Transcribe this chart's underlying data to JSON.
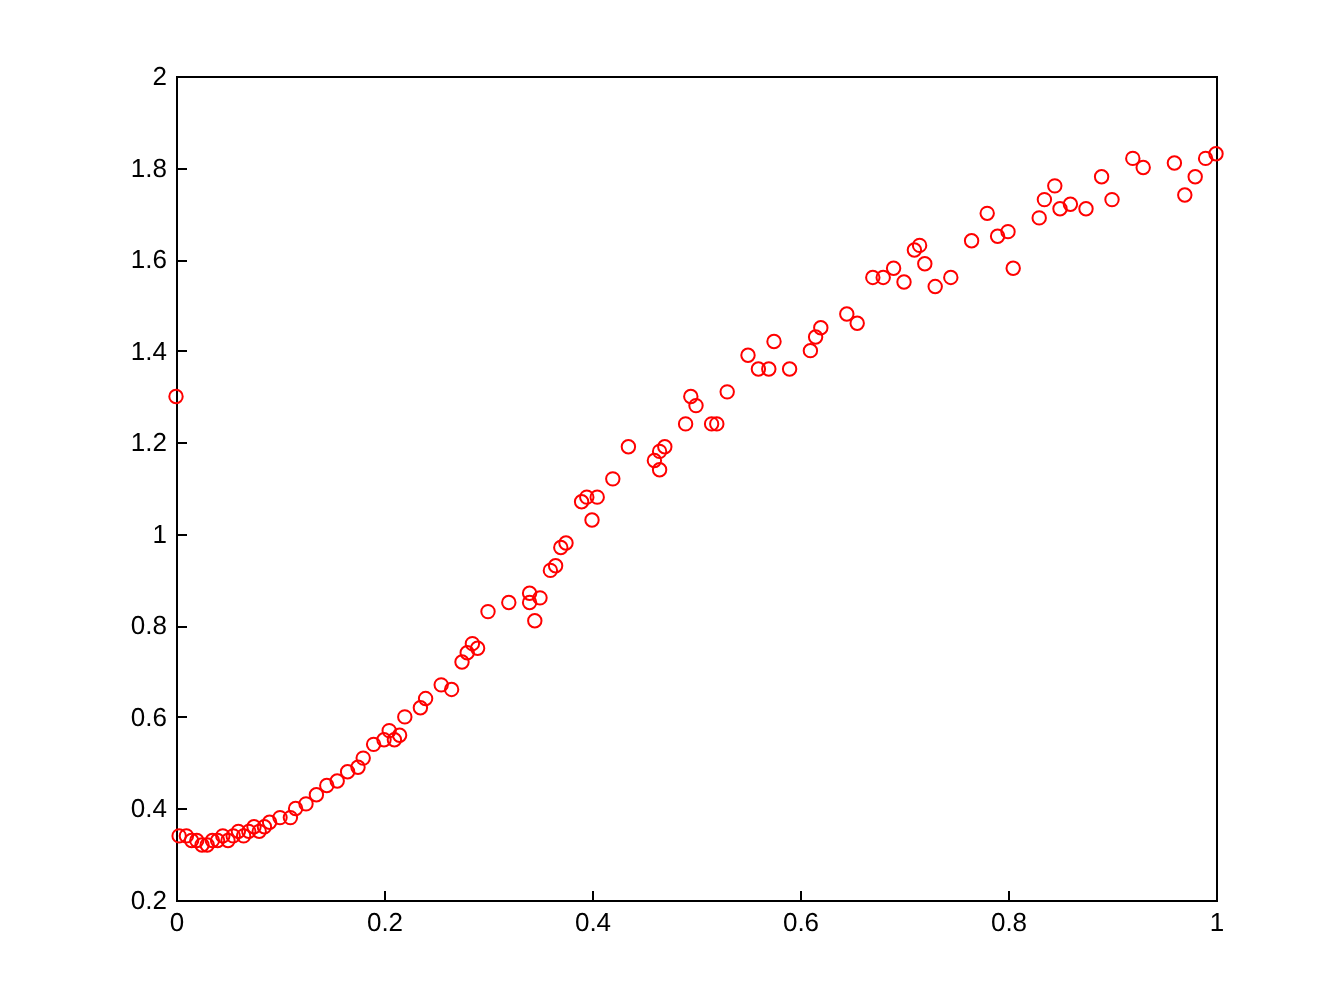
{
  "chart_data": {
    "type": "scatter",
    "marker": "circle",
    "grid": false,
    "xlim": [
      0,
      1
    ],
    "ylim": [
      0.2,
      2
    ],
    "xticks": [
      0,
      0.2,
      0.4,
      0.6,
      0.8,
      1
    ],
    "yticks": [
      0.2,
      0.4,
      0.6,
      0.8,
      1,
      1.2,
      1.4,
      1.6,
      1.8,
      2
    ],
    "series": [
      {
        "color": "#ff0000",
        "x": [
          0,
          0.003,
          0.01,
          0.015,
          0.02,
          0.025,
          0.03,
          0.035,
          0.04,
          0.045,
          0.05,
          0.055,
          0.06,
          0.065,
          0.07,
          0.075,
          0.08,
          0.085,
          0.09,
          0.1,
          0.11,
          0.115,
          0.125,
          0.135,
          0.145,
          0.155,
          0.165,
          0.175,
          0.18,
          0.19,
          0.2,
          0.205,
          0.21,
          0.215,
          0.22,
          0.235,
          0.24,
          0.255,
          0.265,
          0.275,
          0.28,
          0.285,
          0.29,
          0.3,
          0.32,
          0.34,
          0.34,
          0.345,
          0.35,
          0.36,
          0.365,
          0.37,
          0.375,
          0.39,
          0.395,
          0.4,
          0.405,
          0.42,
          0.435,
          0.46,
          0.465,
          0.465,
          0.47,
          0.49,
          0.495,
          0.5,
          0.515,
          0.52,
          0.53,
          0.55,
          0.56,
          0.57,
          0.575,
          0.59,
          0.61,
          0.615,
          0.62,
          0.645,
          0.655,
          0.67,
          0.68,
          0.69,
          0.7,
          0.71,
          0.715,
          0.72,
          0.73,
          0.745,
          0.765,
          0.78,
          0.79,
          0.8,
          0.805,
          0.83,
          0.835,
          0.845,
          0.85,
          0.86,
          0.875,
          0.89,
          0.9,
          0.92,
          0.93,
          0.96,
          0.97,
          0.98,
          0.99,
          1
        ],
        "values": [
          1.3,
          0.34,
          0.34,
          0.33,
          0.33,
          0.32,
          0.32,
          0.33,
          0.33,
          0.34,
          0.33,
          0.34,
          0.35,
          0.34,
          0.35,
          0.36,
          0.35,
          0.36,
          0.37,
          0.38,
          0.38,
          0.4,
          0.41,
          0.43,
          0.45,
          0.46,
          0.48,
          0.49,
          0.51,
          0.54,
          0.55,
          0.57,
          0.55,
          0.56,
          0.6,
          0.62,
          0.64,
          0.67,
          0.66,
          0.72,
          0.74,
          0.76,
          0.75,
          0.83,
          0.85,
          0.85,
          0.87,
          0.81,
          0.86,
          0.92,
          0.93,
          0.97,
          0.98,
          1.07,
          1.08,
          1.03,
          1.08,
          1.12,
          1.19,
          1.16,
          1.18,
          1.14,
          1.19,
          1.24,
          1.3,
          1.28,
          1.24,
          1.24,
          1.31,
          1.39,
          1.36,
          1.36,
          1.42,
          1.36,
          1.4,
          1.43,
          1.45,
          1.48,
          1.46,
          1.56,
          1.56,
          1.58,
          1.55,
          1.62,
          1.63,
          1.59,
          1.54,
          1.56,
          1.64,
          1.7,
          1.65,
          1.66,
          1.58,
          1.69,
          1.73,
          1.76,
          1.71,
          1.72,
          1.71,
          1.78,
          1.73,
          1.82,
          1.8,
          1.81,
          1.74,
          1.78,
          1.82,
          1.83
        ]
      }
    ]
  }
}
